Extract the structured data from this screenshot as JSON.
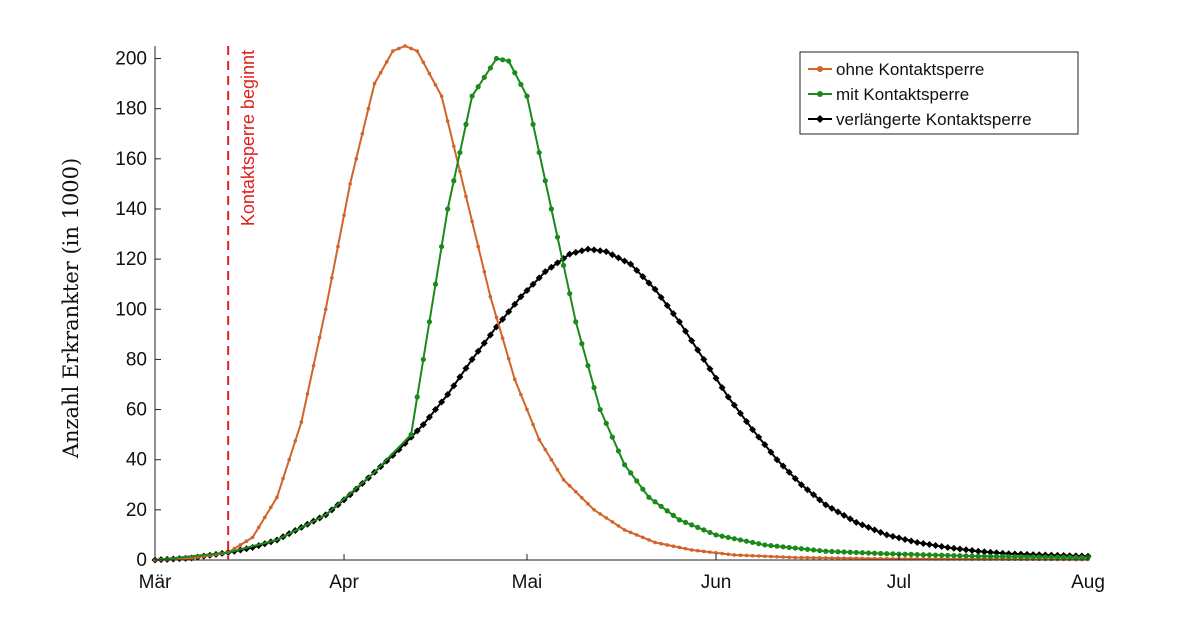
{
  "chart_data": {
    "type": "line",
    "title": "",
    "xlabel": "",
    "ylabel": "Anzahl Erkrankter (in 1000)",
    "ylim": [
      0,
      205
    ],
    "yticks": [
      "0",
      "20",
      "40",
      "60",
      "80",
      "100",
      "120",
      "140",
      "160",
      "180",
      "200"
    ],
    "xticks": [
      "Mär",
      "Apr",
      "Mai",
      "Jun",
      "Jul",
      "Aug"
    ],
    "grid": false,
    "legend_position": "top-right",
    "x_unit": "days after 1 March",
    "annotation": {
      "text": "Kontaktsperre beginnt",
      "x": 12,
      "color": "#e0201e",
      "style": "dashed vertical line"
    },
    "series": [
      {
        "name": "ohne Kontaktsperre",
        "color": "#d2642a",
        "marker": "dot",
        "points": [
          [
            0,
            0
          ],
          [
            6,
            0.8
          ],
          [
            12,
            3
          ],
          [
            16,
            9
          ],
          [
            20,
            25
          ],
          [
            24,
            55
          ],
          [
            28,
            100
          ],
          [
            32,
            150
          ],
          [
            36,
            190
          ],
          [
            39,
            203
          ],
          [
            41,
            205
          ],
          [
            43,
            203
          ],
          [
            47,
            185
          ],
          [
            51,
            145
          ],
          [
            55,
            105
          ],
          [
            59,
            72
          ],
          [
            63,
            48
          ],
          [
            67,
            32
          ],
          [
            72,
            20
          ],
          [
            77,
            12
          ],
          [
            82,
            7
          ],
          [
            88,
            4
          ],
          [
            95,
            2
          ],
          [
            105,
            1
          ],
          [
            120,
            0.5
          ],
          [
            153,
            0.2
          ]
        ]
      },
      {
        "name": "mit Kontaktsperre",
        "color": "#1a8a1a",
        "marker": "dot",
        "points": [
          [
            0,
            0
          ],
          [
            12,
            3
          ],
          [
            20,
            8
          ],
          [
            28,
            18
          ],
          [
            36,
            35
          ],
          [
            42,
            50
          ],
          [
            44,
            80
          ],
          [
            48,
            140
          ],
          [
            52,
            185
          ],
          [
            56,
            200
          ],
          [
            58,
            199
          ],
          [
            61,
            185
          ],
          [
            65,
            140
          ],
          [
            69,
            95
          ],
          [
            73,
            60
          ],
          [
            77,
            38
          ],
          [
            81,
            25
          ],
          [
            86,
            16
          ],
          [
            92,
            10
          ],
          [
            100,
            6
          ],
          [
            110,
            3.5
          ],
          [
            120,
            2.5
          ],
          [
            135,
            1.5
          ],
          [
            153,
            1
          ]
        ]
      },
      {
        "name": "verlängerte Kontaktsperre",
        "color": "#000000",
        "marker": "diamond",
        "points": [
          [
            0,
            0
          ],
          [
            6,
            0.8
          ],
          [
            12,
            3
          ],
          [
            16,
            5
          ],
          [
            20,
            8
          ],
          [
            24,
            13
          ],
          [
            28,
            18
          ],
          [
            32,
            26
          ],
          [
            36,
            35
          ],
          [
            40,
            44
          ],
          [
            44,
            54
          ],
          [
            48,
            66
          ],
          [
            52,
            80
          ],
          [
            56,
            93
          ],
          [
            60,
            105
          ],
          [
            64,
            115
          ],
          [
            68,
            122
          ],
          [
            71,
            124
          ],
          [
            74,
            123
          ],
          [
            78,
            118
          ],
          [
            82,
            108
          ],
          [
            86,
            95
          ],
          [
            90,
            80
          ],
          [
            94,
            65
          ],
          [
            98,
            52
          ],
          [
            102,
            40
          ],
          [
            106,
            30
          ],
          [
            110,
            22
          ],
          [
            115,
            15
          ],
          [
            120,
            10
          ],
          [
            125,
            7
          ],
          [
            130,
            5
          ],
          [
            135,
            3.5
          ],
          [
            140,
            2.5
          ],
          [
            146,
            2
          ],
          [
            153,
            1.5
          ]
        ]
      }
    ]
  }
}
